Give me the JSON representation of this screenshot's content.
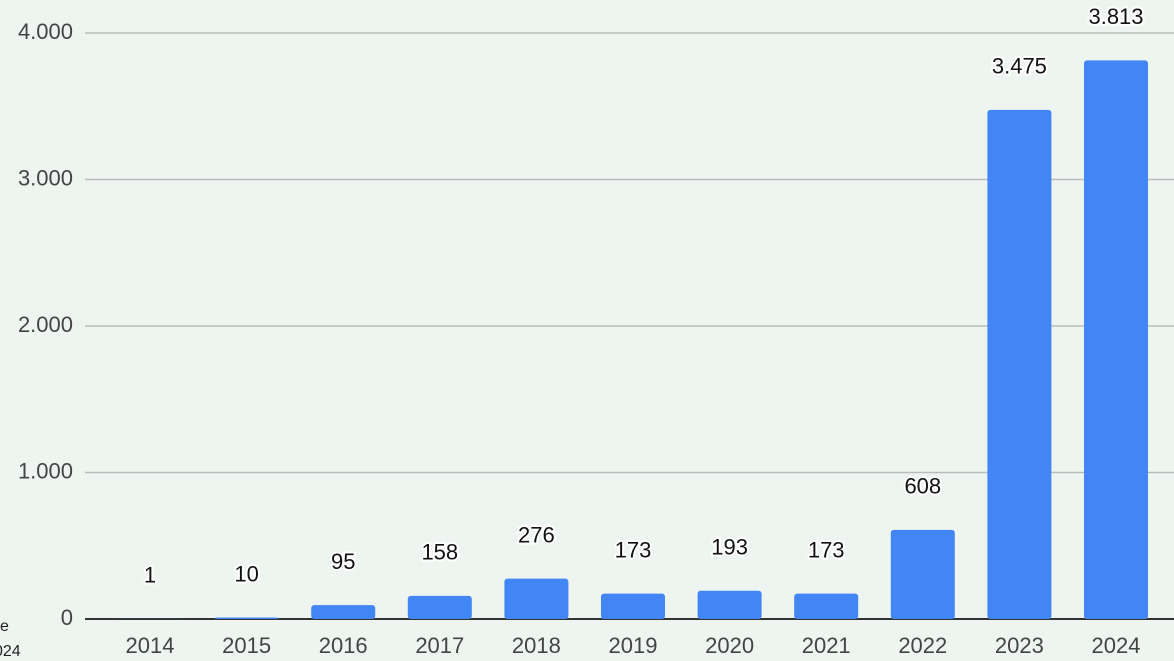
{
  "chart_data": {
    "type": "bar",
    "categories": [
      "2014",
      "2015",
      "2016",
      "2017",
      "2018",
      "2019",
      "2020",
      "2021",
      "2022",
      "2023",
      "2024"
    ],
    "values": [
      1,
      10,
      95,
      158,
      276,
      173,
      193,
      173,
      608,
      3475,
      3813
    ],
    "value_labels": [
      "1",
      "10",
      "95",
      "158",
      "276",
      "173",
      "193",
      "173",
      "608",
      "3.475",
      "3.813"
    ],
    "color": "#4285f4",
    "ylim": [
      0,
      4000
    ],
    "yticks": [
      0,
      {
        "value": 1000,
        "label": "1.000"
      },
      {
        "value": 2000,
        "label": "2.000"
      },
      {
        "value": 3000,
        "label": "3.000"
      },
      {
        "value": 4000,
        "label": "4.000"
      }
    ],
    "grid": true,
    "annotations": [
      "e",
      "024"
    ]
  }
}
